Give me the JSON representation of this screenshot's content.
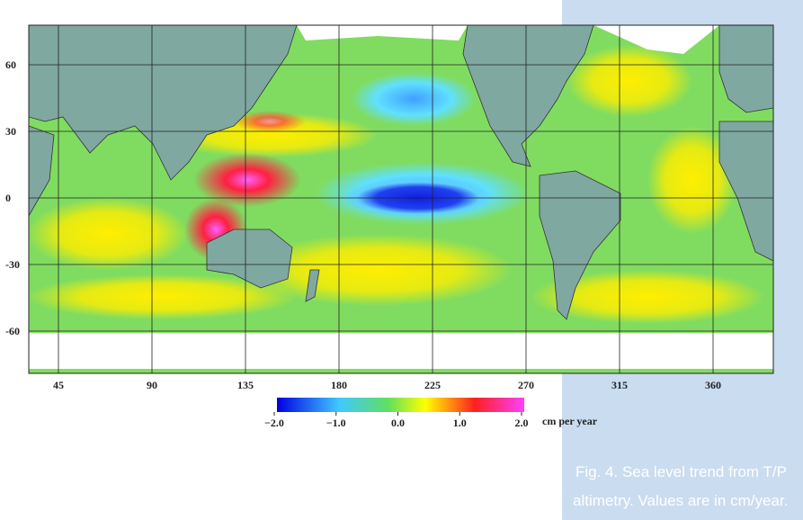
{
  "map": {
    "xticks": [
      45,
      90,
      135,
      180,
      225,
      270,
      315,
      360
    ],
    "yticks": [
      60,
      30,
      0,
      -30,
      -60
    ]
  },
  "colorbar": {
    "ticks": [
      {
        "value": -2,
        "label": "−2.0"
      },
      {
        "value": -1,
        "label": "−1.0"
      },
      {
        "value": 0,
        "label": "0.0"
      },
      {
        "value": 1,
        "label": "1.0"
      },
      {
        "value": 2,
        "label": "2.0"
      }
    ],
    "unit": "cm per year"
  },
  "caption": {
    "lines": [
      "Fig. 4. Sea level trend from T/P",
      "altimetry. Values are in cm/year."
    ]
  }
}
